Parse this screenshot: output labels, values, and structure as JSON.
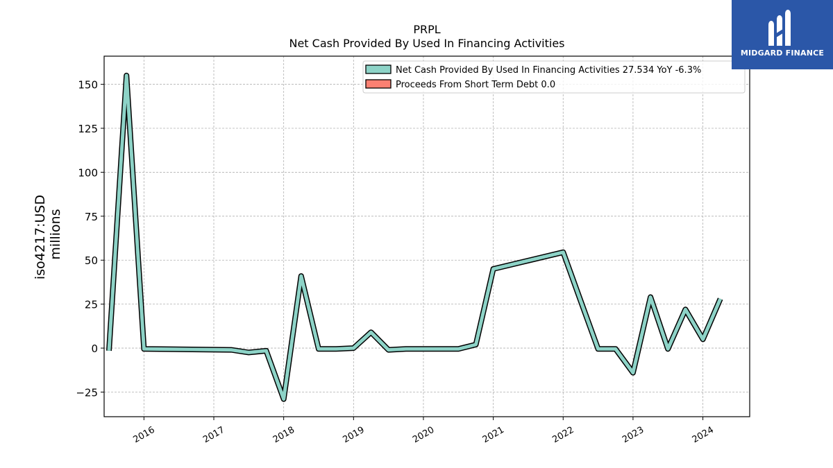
{
  "chart_data": {
    "type": "line",
    "title": "PRPL",
    "subtitle": "Net Cash Provided By Used In Financing Activities",
    "ylabel_line1": "iso4217:USD",
    "ylabel_line2": "millions",
    "xlabel": "",
    "ylim": [
      -39,
      166
    ],
    "xlim": [
      2015.43,
      2024.67
    ],
    "grid": true,
    "legend_position": "top-right",
    "x_ticks": [
      2016,
      2017,
      2018,
      2019,
      2020,
      2021,
      2022,
      2023,
      2024
    ],
    "x_tick_labels": [
      "2016",
      "2017",
      "2018",
      "2019",
      "2020",
      "2021",
      "2022",
      "2023",
      "2024"
    ],
    "y_ticks": [
      -25,
      0,
      25,
      50,
      75,
      100,
      125,
      150
    ],
    "y_tick_labels": [
      "−25",
      "0",
      "25",
      "50",
      "75",
      "100",
      "125",
      "150"
    ],
    "series": [
      {
        "name": "Net Cash Provided By Used In Financing Activities",
        "legend_label": "Net Cash Provided By Used In Financing Activities  27.534 YoY -6.3%",
        "color": "#8dd3c7",
        "x": [
          2015.5,
          2015.75,
          2016.0,
          2017.25,
          2017.5,
          2017.75,
          2018.0,
          2018.25,
          2018.5,
          2018.75,
          2019.0,
          2019.25,
          2019.5,
          2019.75,
          2020.5,
          2020.75,
          2021.0,
          2022.0,
          2022.25,
          2022.5,
          2022.75,
          2023.0,
          2023.25,
          2023.5,
          2023.75,
          2024.0,
          2024.25
        ],
        "y": [
          -1.5,
          155,
          -0.5,
          -1,
          -2.5,
          -1.5,
          -29,
          41,
          -0.5,
          -0.5,
          0,
          9,
          -1,
          -0.5,
          -0.5,
          2,
          45,
          54.5,
          27,
          -0.5,
          -0.5,
          -14,
          29,
          -0.5,
          22,
          5,
          28
        ]
      },
      {
        "name": "Proceeds From Short Term Debt",
        "legend_label": "Proceeds From Short Term Debt  0.0",
        "color": "#fb8072",
        "x": [],
        "y": []
      }
    ]
  },
  "logo": {
    "text": "MIDGARD FINANCE",
    "background": "#2b57a8"
  }
}
